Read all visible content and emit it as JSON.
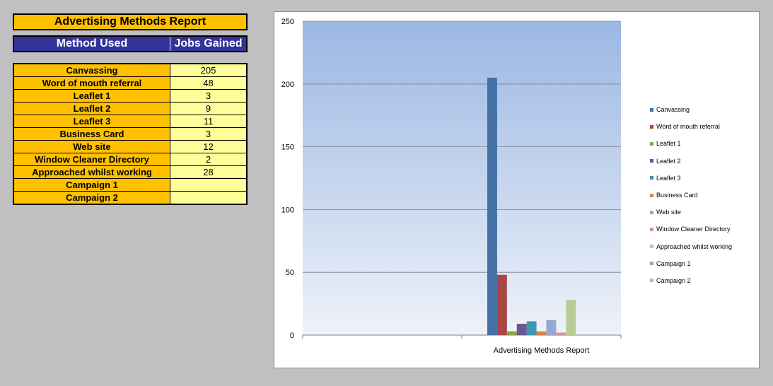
{
  "report": {
    "title": "Advertising Methods Report",
    "col_method": "Method Used",
    "col_jobs": "Jobs Gained",
    "rows": [
      {
        "method": "Canvassing",
        "jobs": "205"
      },
      {
        "method": "Word of mouth referral",
        "jobs": "48"
      },
      {
        "method": "Leaflet 1",
        "jobs": "3"
      },
      {
        "method": "Leaflet 2",
        "jobs": "9"
      },
      {
        "method": "Leaflet 3",
        "jobs": "11"
      },
      {
        "method": "Business Card",
        "jobs": "3"
      },
      {
        "method": "Web site",
        "jobs": "12"
      },
      {
        "method": "Window Cleaner Directory",
        "jobs": "2"
      },
      {
        "method": "Approached whilst working",
        "jobs": "28"
      },
      {
        "method": "Campaign 1",
        "jobs": ""
      },
      {
        "method": "Campaign 2",
        "jobs": ""
      }
    ]
  },
  "chart_data": {
    "type": "bar",
    "categories": [
      "",
      "Advertising Methods Report"
    ],
    "xlabel": "",
    "ylabel": "",
    "ylim": [
      0,
      250
    ],
    "yticks": [
      "0",
      "50",
      "100",
      "150",
      "200",
      "250"
    ],
    "grid": true,
    "legend_position": "right",
    "plot_background": "gradient blue-to-white",
    "series": [
      {
        "name": "Canvassing",
        "color": "#4470a5",
        "values": [
          0,
          205
        ]
      },
      {
        "name": "Word of mouth referral",
        "color": "#a84745",
        "values": [
          0,
          48
        ]
      },
      {
        "name": "Leaflet 1",
        "color": "#86a54a",
        "values": [
          0,
          3
        ]
      },
      {
        "name": "Leaflet 2",
        "color": "#6f5693",
        "values": [
          0,
          9
        ]
      },
      {
        "name": "Leaflet 3",
        "color": "#3d97b0",
        "values": [
          0,
          11
        ]
      },
      {
        "name": "Business Card",
        "color": "#db843d",
        "values": [
          0,
          3
        ]
      },
      {
        "name": "Web site",
        "color": "#93a9cf",
        "values": [
          0,
          12
        ]
      },
      {
        "name": "Window Cleaner Directory",
        "color": "#d09a98",
        "values": [
          0,
          2
        ]
      },
      {
        "name": "Approached whilst working",
        "color": "#b9cd97",
        "values": [
          0,
          28
        ]
      },
      {
        "name": "Campaign 1",
        "color": "#a99bbd",
        "values": [
          0,
          0
        ]
      },
      {
        "name": "Campaign 2",
        "color": "#92c3d4",
        "values": [
          0,
          0
        ]
      }
    ]
  }
}
